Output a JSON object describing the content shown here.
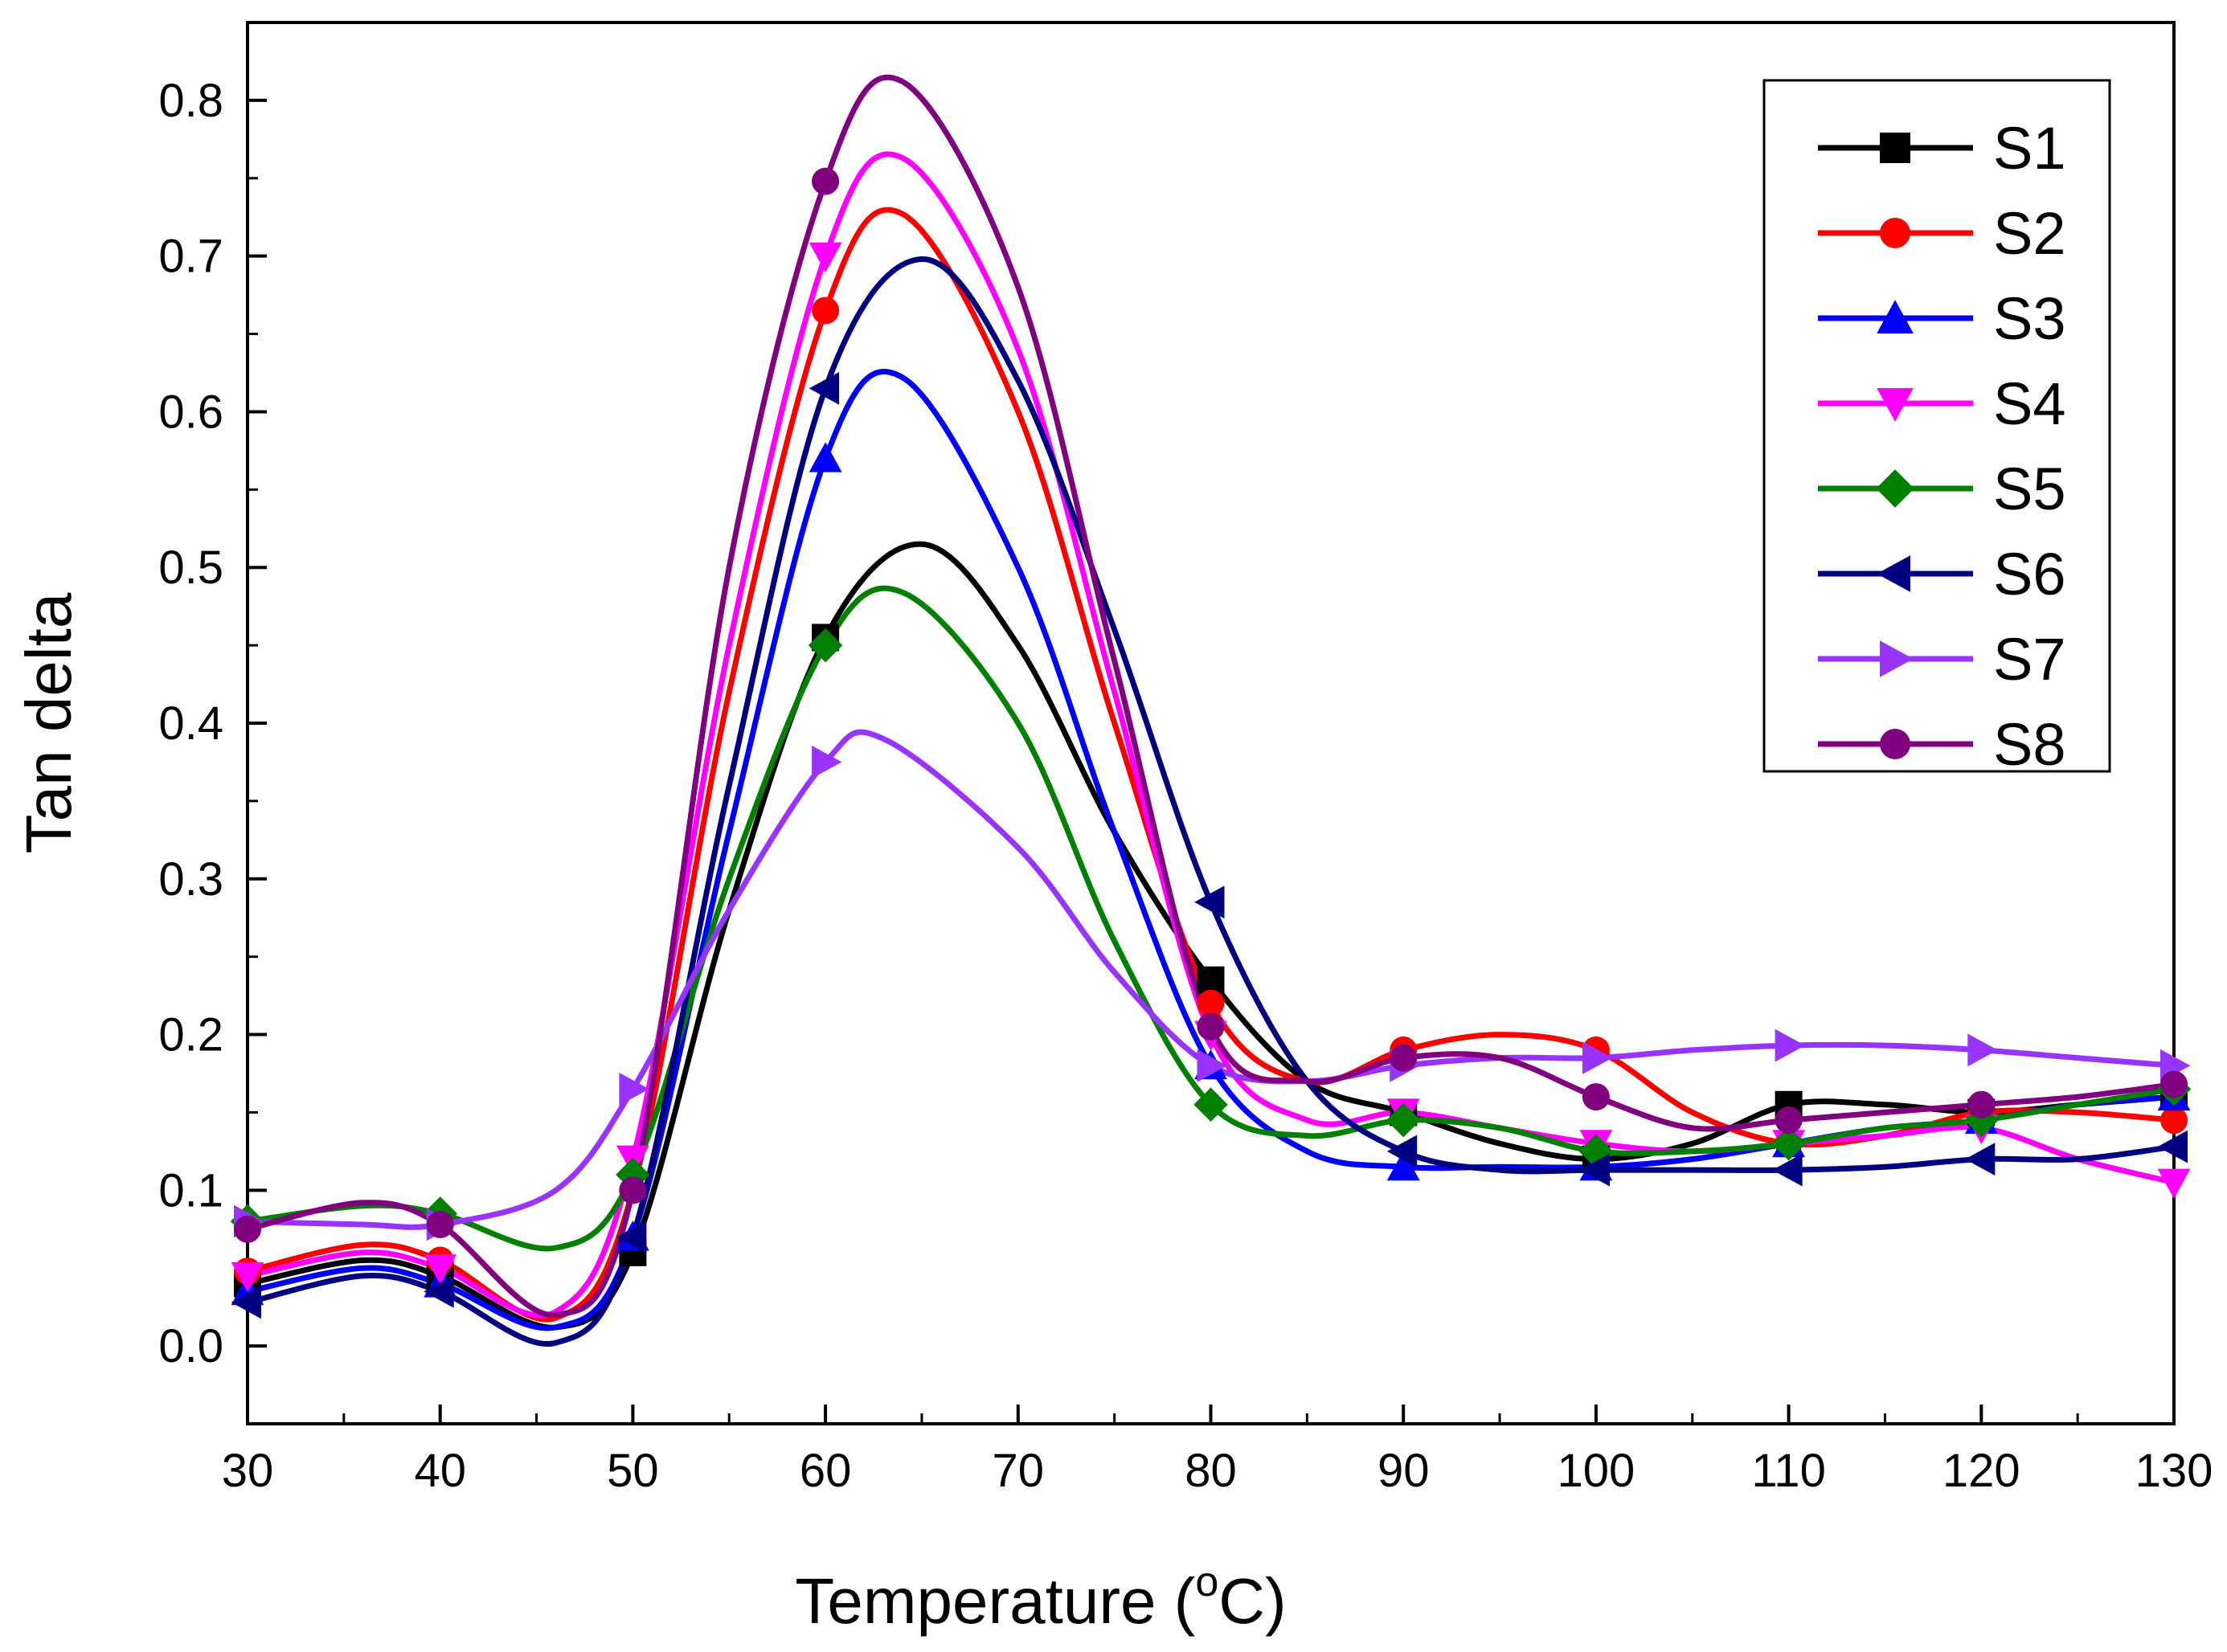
{
  "chart_data": {
    "type": "line",
    "title": "",
    "xlabel": "Temperature (",
    "xlabel_sup": "o",
    "xlabel_unit": "C)",
    "ylabel": "Tan delta",
    "xlim": [
      30,
      130
    ],
    "ylim": [
      -0.05,
      0.85
    ],
    "x_ticks": [
      30,
      40,
      50,
      60,
      70,
      80,
      90,
      100,
      110,
      120,
      130
    ],
    "x_tick_labels": [
      "30",
      "40",
      "50",
      "60",
      "70",
      "80",
      "90",
      "100",
      "110",
      "120",
      "130"
    ],
    "y_ticks": [
      0.0,
      0.1,
      0.2,
      0.3,
      0.4,
      0.5,
      0.6,
      0.7,
      0.8
    ],
    "y_tick_labels": [
      "0.0",
      "0.1",
      "0.2",
      "0.3",
      "0.4",
      "0.5",
      "0.6",
      "0.7",
      "0.8"
    ],
    "legend_position": "top-right",
    "series": [
      {
        "name": "S1",
        "color": "#000000",
        "marker": "square",
        "x": [
          30,
          36,
          40,
          46,
          50,
          55,
          60,
          65,
          70,
          75,
          80,
          85,
          90,
          95,
          100,
          105,
          110,
          115,
          120,
          125,
          130
        ],
        "y": [
          0.04,
          0.055,
          0.045,
          0.012,
          0.06,
          0.28,
          0.455,
          0.515,
          0.45,
          0.33,
          0.235,
          0.17,
          0.15,
          0.13,
          0.12,
          0.13,
          0.155,
          0.155,
          0.15,
          0.155,
          0.16
        ],
        "marker_x": [
          30,
          40,
          50,
          60,
          80,
          90,
          100,
          110,
          120,
          130
        ],
        "marker_y": [
          0.04,
          0.045,
          0.06,
          0.455,
          0.235,
          0.15,
          0.12,
          0.155,
          0.15,
          0.16
        ]
      },
      {
        "name": "S2",
        "color": "#ff0000",
        "marker": "circle",
        "x": [
          30,
          36,
          40,
          46,
          50,
          55,
          60,
          64,
          70,
          75,
          80,
          85,
          90,
          95,
          100,
          105,
          110,
          115,
          120,
          125,
          130
        ],
        "y": [
          0.048,
          0.065,
          0.055,
          0.018,
          0.1,
          0.42,
          0.665,
          0.727,
          0.6,
          0.4,
          0.22,
          0.17,
          0.19,
          0.2,
          0.19,
          0.15,
          0.13,
          0.135,
          0.15,
          0.15,
          0.145
        ],
        "marker_x": [
          30,
          40,
          50,
          60,
          80,
          90,
          100,
          110,
          120,
          130
        ],
        "marker_y": [
          0.048,
          0.055,
          0.1,
          0.665,
          0.22,
          0.19,
          0.19,
          0.13,
          0.15,
          0.145
        ]
      },
      {
        "name": "S3",
        "color": "#0000ff",
        "marker": "triangle-up",
        "x": [
          30,
          36,
          40,
          46,
          50,
          55,
          60,
          64,
          70,
          75,
          80,
          85,
          90,
          95,
          100,
          105,
          110,
          115,
          120,
          125,
          130
        ],
        "y": [
          0.035,
          0.05,
          0.04,
          0.012,
          0.07,
          0.33,
          0.57,
          0.622,
          0.5,
          0.33,
          0.18,
          0.125,
          0.115,
          0.115,
          0.115,
          0.12,
          0.13,
          0.14,
          0.145,
          0.155,
          0.16
        ],
        "marker_x": [
          30,
          40,
          50,
          60,
          80,
          90,
          100,
          110,
          120,
          130
        ],
        "marker_y": [
          0.035,
          0.04,
          0.07,
          0.57,
          0.18,
          0.115,
          0.115,
          0.13,
          0.145,
          0.16
        ]
      },
      {
        "name": "S4",
        "color": "#ff00ff",
        "marker": "triangle-down",
        "x": [
          30,
          36,
          40,
          46,
          50,
          55,
          60,
          64,
          70,
          75,
          80,
          85,
          90,
          95,
          100,
          105,
          110,
          115,
          120,
          125,
          130
        ],
        "y": [
          0.045,
          0.06,
          0.05,
          0.022,
          0.12,
          0.45,
          0.7,
          0.763,
          0.64,
          0.42,
          0.2,
          0.145,
          0.15,
          0.14,
          0.13,
          0.125,
          0.13,
          0.135,
          0.14,
          0.12,
          0.105
        ],
        "marker_x": [
          30,
          40,
          50,
          60,
          80,
          90,
          100,
          110,
          120,
          130
        ],
        "marker_y": [
          0.045,
          0.05,
          0.12,
          0.7,
          0.2,
          0.15,
          0.13,
          0.13,
          0.14,
          0.105
        ]
      },
      {
        "name": "S5",
        "color": "#008000",
        "marker": "diamond",
        "x": [
          30,
          36,
          40,
          46,
          50,
          55,
          60,
          64,
          70,
          75,
          80,
          85,
          90,
          95,
          100,
          105,
          110,
          115,
          120,
          125,
          130
        ],
        "y": [
          0.08,
          0.09,
          0.085,
          0.063,
          0.11,
          0.3,
          0.45,
          0.484,
          0.4,
          0.26,
          0.155,
          0.135,
          0.145,
          0.14,
          0.125,
          0.125,
          0.13,
          0.14,
          0.145,
          0.155,
          0.165
        ],
        "marker_x": [
          30,
          40,
          50,
          60,
          80,
          90,
          100,
          110,
          120,
          130
        ],
        "marker_y": [
          0.08,
          0.085,
          0.11,
          0.45,
          0.155,
          0.145,
          0.125,
          0.13,
          0.145,
          0.165
        ]
      },
      {
        "name": "S6",
        "color": "#000080",
        "marker": "triangle-left",
        "x": [
          30,
          36,
          40,
          46,
          50,
          55,
          60,
          65,
          70,
          75,
          80,
          85,
          90,
          95,
          100,
          105,
          110,
          115,
          120,
          125,
          130
        ],
        "y": [
          0.028,
          0.045,
          0.035,
          0.002,
          0.07,
          0.36,
          0.615,
          0.698,
          0.62,
          0.46,
          0.285,
          0.17,
          0.125,
          0.113,
          0.113,
          0.113,
          0.113,
          0.115,
          0.12,
          0.12,
          0.128
        ],
        "marker_x": [
          30,
          40,
          50,
          60,
          80,
          90,
          100,
          110,
          120,
          130
        ],
        "marker_y": [
          0.028,
          0.035,
          0.07,
          0.615,
          0.285,
          0.125,
          0.113,
          0.113,
          0.12,
          0.128
        ]
      },
      {
        "name": "S7",
        "color": "#9933ff",
        "marker": "triangle-right",
        "x": [
          30,
          36,
          40,
          46,
          50,
          55,
          60,
          63,
          70,
          75,
          80,
          85,
          90,
          95,
          100,
          105,
          110,
          115,
          120,
          125,
          130
        ],
        "y": [
          0.08,
          0.078,
          0.078,
          0.1,
          0.165,
          0.28,
          0.375,
          0.39,
          0.32,
          0.24,
          0.18,
          0.17,
          0.18,
          0.185,
          0.185,
          0.19,
          0.193,
          0.193,
          0.19,
          0.185,
          0.18
        ],
        "marker_x": [
          30,
          40,
          50,
          60,
          80,
          90,
          100,
          110,
          120,
          130
        ],
        "marker_y": [
          0.08,
          0.078,
          0.165,
          0.375,
          0.18,
          0.18,
          0.185,
          0.193,
          0.19,
          0.18
        ]
      },
      {
        "name": "S8",
        "color": "#800080",
        "marker": "circle",
        "x": [
          30,
          36,
          40,
          46,
          50,
          55,
          60,
          64,
          70,
          75,
          80,
          85,
          90,
          95,
          100,
          105,
          110,
          115,
          120,
          125,
          130
        ],
        "y": [
          0.075,
          0.092,
          0.078,
          0.02,
          0.1,
          0.5,
          0.748,
          0.812,
          0.68,
          0.44,
          0.205,
          0.17,
          0.185,
          0.185,
          0.16,
          0.14,
          0.145,
          0.15,
          0.155,
          0.16,
          0.168
        ],
        "marker_x": [
          30,
          40,
          50,
          60,
          80,
          90,
          100,
          110,
          120,
          130
        ],
        "marker_y": [
          0.075,
          0.078,
          0.1,
          0.748,
          0.205,
          0.185,
          0.16,
          0.145,
          0.155,
          0.168
        ]
      }
    ]
  }
}
